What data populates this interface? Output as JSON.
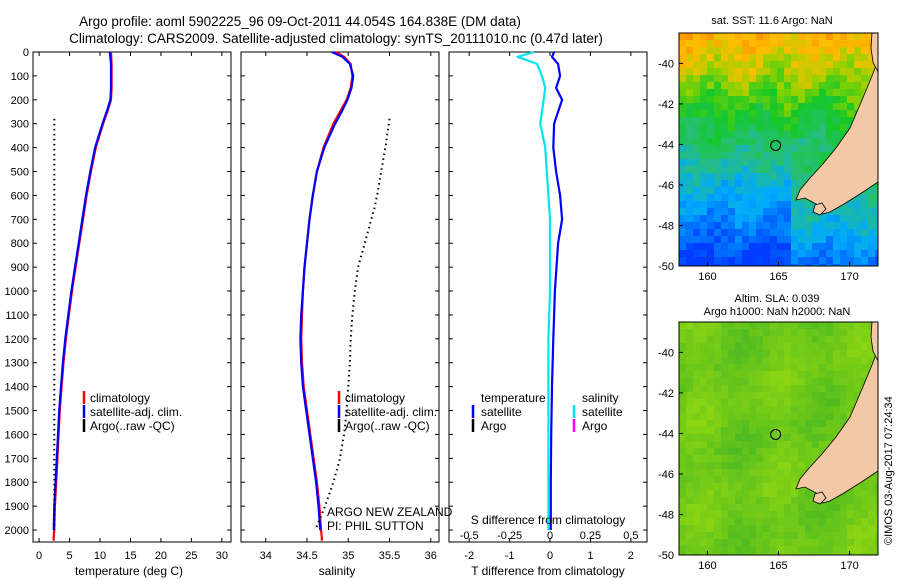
{
  "header": {
    "line1": "Argo profile: aoml 5902225_96 09-Oct-2011 44.054S 164.838E (DM data)",
    "line2": "Climatology: CARS2009. Satellite-adjusted climatology: synTS_20111010.nc (0.47d later)"
  },
  "colors": {
    "climatology": "#ff0000",
    "satellite": "#0000ff",
    "argo": "#000000",
    "s_satellite": "#00e5ee",
    "s_argo": "#ff00ff",
    "land": "#f5c8a5"
  },
  "depth_axis": {
    "range": [
      0,
      2050
    ],
    "ticks": [
      "0",
      "100",
      "200",
      "300",
      "400",
      "500",
      "600",
      "700",
      "800",
      "900",
      "1000",
      "1100",
      "1200",
      "1300",
      "1400",
      "1500",
      "1600",
      "1700",
      "1800",
      "1900",
      "2000"
    ]
  },
  "chart_data": [
    {
      "id": "temperature",
      "type": "line",
      "xlabel": "temperature (deg C)",
      "xlim": [
        -1,
        31.5
      ],
      "ylim": [
        2050,
        0
      ],
      "xticks": [
        "0",
        "5",
        "10",
        "15",
        "20",
        "25",
        "30"
      ],
      "legend": {
        "placement": "lower-middle",
        "entries": [
          "climatology",
          "satellite-adj. clim.",
          "Argo(..raw -QC)"
        ]
      },
      "series": [
        {
          "name": "climatology",
          "depth": [
            0,
            50,
            100,
            150,
            200,
            250,
            300,
            400,
            500,
            600,
            700,
            800,
            900,
            1000,
            1100,
            1200,
            1300,
            1400,
            1500,
            1600,
            1700,
            1800,
            1900,
            2000,
            2030,
            2045
          ],
          "values": [
            11.8,
            11.9,
            11.9,
            11.9,
            11.8,
            11.2,
            10.5,
            9.3,
            8.5,
            7.8,
            7.2,
            6.6,
            6.0,
            5.4,
            4.9,
            4.4,
            4.0,
            3.7,
            3.4,
            3.2,
            3.0,
            2.8,
            2.6,
            2.5,
            2.4,
            2.4
          ]
        },
        {
          "name": "satellite-adj. clim.",
          "depth": [
            0,
            50,
            100,
            150,
            200,
            250,
            300,
            400,
            500,
            600,
            700,
            800,
            900,
            1000,
            1100,
            1200,
            1300,
            1400,
            1500,
            1600,
            1700,
            1800,
            1900,
            2000
          ],
          "values": [
            11.6,
            11.8,
            11.8,
            11.8,
            11.7,
            11.1,
            10.4,
            9.2,
            8.4,
            7.7,
            7.1,
            6.5,
            5.9,
            5.3,
            4.8,
            4.3,
            3.9,
            3.6,
            3.3,
            3.1,
            2.9,
            2.7,
            2.5,
            2.4
          ]
        },
        {
          "name": "Argo(..raw -QC)",
          "style": "dotted",
          "depth": [
            280,
            2000
          ],
          "values": [
            2.5,
            2.5
          ]
        }
      ]
    },
    {
      "id": "salinity",
      "type": "line",
      "xlabel": "salinity",
      "xlim": [
        33.7,
        36.1
      ],
      "ylim": [
        2050,
        0
      ],
      "xticks": [
        "34",
        "34.5",
        "35",
        "35.5",
        "36"
      ],
      "legend": {
        "placement": "lower-middle",
        "entries": [
          "climatology",
          "satellite-adj. clim.",
          "Argo(..raw -QC)"
        ]
      },
      "footnote": [
        "ARGO NEW ZEALAND",
        "PI: PHIL SUTTON"
      ],
      "series": [
        {
          "name": "climatology",
          "depth": [
            0,
            20,
            50,
            100,
            150,
            200,
            250,
            300,
            400,
            500,
            600,
            700,
            800,
            900,
            1000,
            1100,
            1200,
            1300,
            1400,
            1500,
            1600,
            1700,
            1800,
            1900,
            2000,
            2030,
            2045
          ],
          "values": [
            34.85,
            34.95,
            35.03,
            35.05,
            35.03,
            34.98,
            34.9,
            34.82,
            34.7,
            34.62,
            34.57,
            34.53,
            34.5,
            34.47,
            34.45,
            34.44,
            34.43,
            34.44,
            34.46,
            34.5,
            34.54,
            34.58,
            34.62,
            34.65,
            34.67,
            34.68,
            34.68
          ]
        },
        {
          "name": "satellite-adj. clim.",
          "depth": [
            0,
            20,
            50,
            100,
            150,
            200,
            250,
            300,
            400,
            500,
            600,
            700,
            800,
            900,
            1000,
            1100,
            1200,
            1300,
            1400,
            1500,
            1600,
            1700,
            1800,
            1900,
            2000
          ],
          "values": [
            34.8,
            34.93,
            35.02,
            35.06,
            35.04,
            34.99,
            34.92,
            34.84,
            34.71,
            34.62,
            34.57,
            34.53,
            34.5,
            34.47,
            34.45,
            34.43,
            34.42,
            34.43,
            34.45,
            34.49,
            34.53,
            34.57,
            34.61,
            34.64,
            34.66
          ]
        },
        {
          "name": "Argo(..raw -QC)",
          "style": "dotted",
          "depth": [
            280,
            400,
            500,
            600,
            650,
            700,
            800,
            900,
            1000,
            1100,
            1200,
            1300,
            1400,
            1500,
            1600,
            1700,
            1800,
            1900,
            2000
          ],
          "values": [
            35.5,
            35.45,
            35.4,
            35.35,
            35.32,
            35.28,
            35.2,
            35.12,
            35.08,
            35.05,
            35.03,
            35.02,
            35.0,
            34.98,
            34.95,
            34.9,
            34.82,
            34.72,
            34.6
          ]
        }
      ]
    },
    {
      "id": "difference",
      "type": "line",
      "xlabel": "T difference from climatology",
      "xlabel_top": "S difference from climatology",
      "xlim": [
        -2.5,
        2.4
      ],
      "ylim": [
        2050,
        0
      ],
      "xticks": [
        "-2",
        "-1",
        "0",
        "1",
        "2"
      ],
      "s_xticks": [
        "-0.5",
        "-0.25",
        "0",
        "0.25",
        "0.5"
      ],
      "legend": {
        "placement": "lower-middle",
        "headers": [
          "temperature",
          "salinity"
        ],
        "entries": [
          "satellite",
          "Argo",
          "satellite",
          "Argo"
        ]
      },
      "series": [
        {
          "name": "temperature satellite",
          "depth": [
            0,
            20,
            50,
            100,
            150,
            200,
            300,
            400,
            500,
            600,
            700,
            800,
            1000,
            1200,
            1400,
            1600,
            1800,
            2000
          ],
          "values": [
            0.1,
            0.05,
            0.2,
            0.25,
            0.15,
            0.3,
            0.1,
            0.08,
            0.15,
            0.25,
            0.3,
            0.2,
            0.12,
            0.08,
            0.05,
            0.03,
            0.02,
            0.02
          ]
        },
        {
          "name": "salinity satellite",
          "depth": [
            0,
            20,
            50,
            100,
            150,
            200,
            300,
            400,
            500,
            600,
            700,
            800,
            1000,
            1200,
            1400,
            1600,
            1800,
            2000
          ],
          "values": [
            -0.1,
            -0.2,
            -0.08,
            -0.05,
            -0.03,
            -0.04,
            -0.06,
            -0.03,
            -0.02,
            -0.01,
            0.0,
            0.0,
            0.0,
            -0.01,
            -0.01,
            -0.01,
            -0.01,
            -0.01
          ]
        }
      ]
    }
  ],
  "maps": [
    {
      "id": "sst-map",
      "title": "sat. SST: 11.6 Argo: NaN",
      "xticks": [
        "160",
        "165",
        "170"
      ],
      "yticks": [
        "-40",
        "-42",
        "-44",
        "-46",
        "-48",
        "-50"
      ],
      "lon_range": [
        158,
        172
      ],
      "lat_range": [
        -50,
        -38.5
      ],
      "marker": {
        "lon": 164.8,
        "lat": -44.05
      }
    },
    {
      "id": "sla-map",
      "title_lines": [
        "Altim. SLA: 0.039",
        "Argo h1000: NaN h2000: NaN"
      ],
      "xticks": [
        "160",
        "165",
        "170"
      ],
      "yticks": [
        "-40",
        "-42",
        "-44",
        "-46",
        "-48",
        "-50"
      ],
      "lon_range": [
        158,
        172
      ],
      "lat_range": [
        -50,
        -38.5
      ],
      "marker": {
        "lon": 164.8,
        "lat": -44.05
      }
    }
  ],
  "stamp": "©IMOS 03-Aug-2017 07:24:34"
}
